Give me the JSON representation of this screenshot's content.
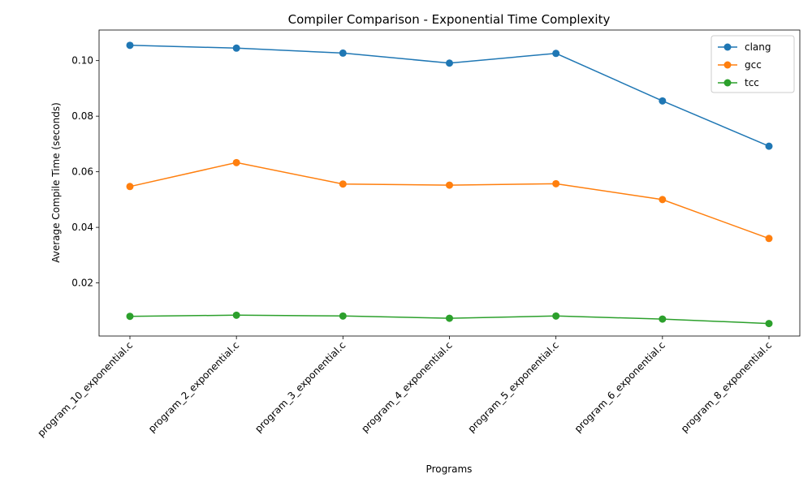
{
  "chart_data": {
    "type": "line",
    "title": "Compiler Comparison - Exponential Time Complexity",
    "xlabel": "Programs",
    "ylabel": "Average Compile Time (seconds)",
    "categories": [
      "program_10_exponential.c",
      "program_2_exponential.c",
      "program_3_exponential.c",
      "program_4_exponential.c",
      "program_5_exponential.c",
      "program_6_exponential.c",
      "program_8_exponential.c"
    ],
    "ylim": [
      0.0009,
      0.111
    ],
    "yticks": [
      0.02,
      0.04,
      0.06,
      0.08,
      0.1
    ],
    "ytick_labels": [
      "0.02",
      "0.04",
      "0.06",
      "0.08",
      "0.10"
    ],
    "grid": false,
    "legend_position": "top-right",
    "series": [
      {
        "name": "clang",
        "color": "#1f77b4",
        "values": [
          0.1055,
          0.1045,
          0.1027,
          0.0991,
          0.1026,
          0.0855,
          0.0692
        ]
      },
      {
        "name": "gcc",
        "color": "#ff7f0e",
        "values": [
          0.0547,
          0.0633,
          0.0556,
          0.0552,
          0.0557,
          0.05,
          0.036
        ]
      },
      {
        "name": "tcc",
        "color": "#2ca02c",
        "values": [
          0.008,
          0.0084,
          0.0081,
          0.0073,
          0.0081,
          0.007,
          0.0054
        ]
      }
    ]
  }
}
